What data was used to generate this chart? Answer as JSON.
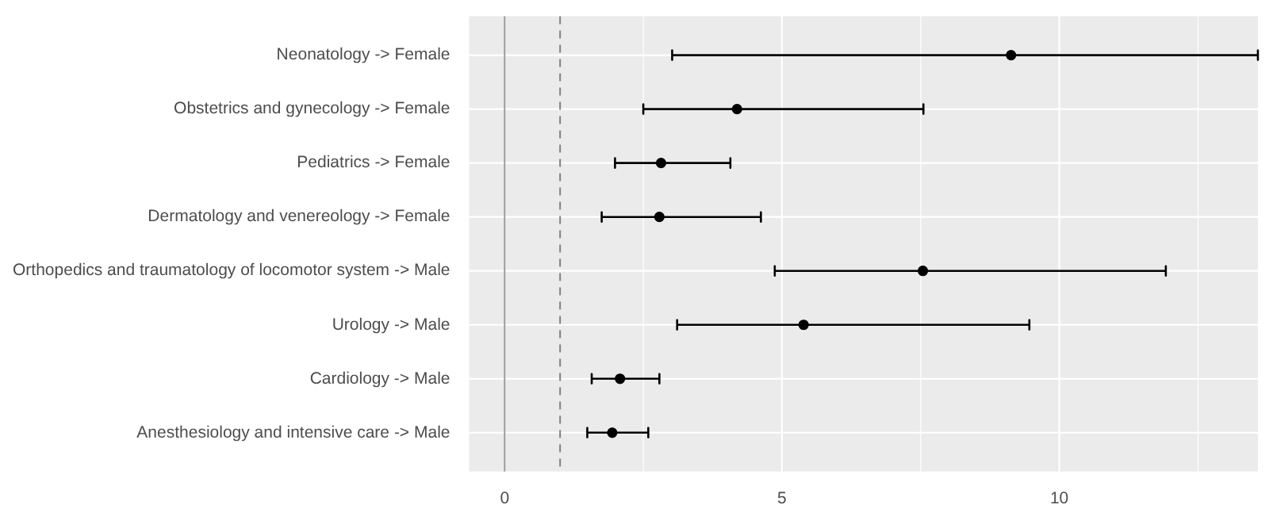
{
  "chart_data": {
    "type": "scatter",
    "orientation": "horizontal",
    "categories": [
      "Neonatology -> Female",
      "Obstetrics and gynecology -> Female",
      "Pediatrics -> Female",
      "Dermatology and venereology -> Female",
      "Orthopedics and traumatology of locomotor system -> Male",
      "Urology -> Male",
      "Cardiology -> Male",
      "Anesthesiology and intensive care -> Male"
    ],
    "values": [
      9.13,
      4.19,
      2.82,
      2.79,
      7.54,
      5.39,
      2.08,
      1.94
    ],
    "errors": [
      [
        3.02,
        13.58
      ],
      [
        2.5,
        7.55
      ],
      [
        1.99,
        4.07
      ],
      [
        1.75,
        4.62
      ],
      [
        4.87,
        11.92
      ],
      [
        3.11,
        9.46
      ],
      [
        1.57,
        2.79
      ],
      [
        1.49,
        2.59
      ]
    ],
    "color": "#000000",
    "xlim": [
      -0.64,
      13.58
    ],
    "xticks": [
      0,
      {
        "value": 2.5,
        "label": null
      },
      5,
      {
        "value": 7.5,
        "label": null
      },
      10,
      {
        "value": 12.5,
        "label": null
      }
    ],
    "ref_lines": [
      {
        "axis": "x",
        "value": 0,
        "color": "#999999",
        "line_style": "solid"
      },
      {
        "axis": "x",
        "value": 1,
        "color": "#808080",
        "line_style": "dashed"
      }
    ],
    "grid": true,
    "legend": false,
    "marker": "circle"
  }
}
